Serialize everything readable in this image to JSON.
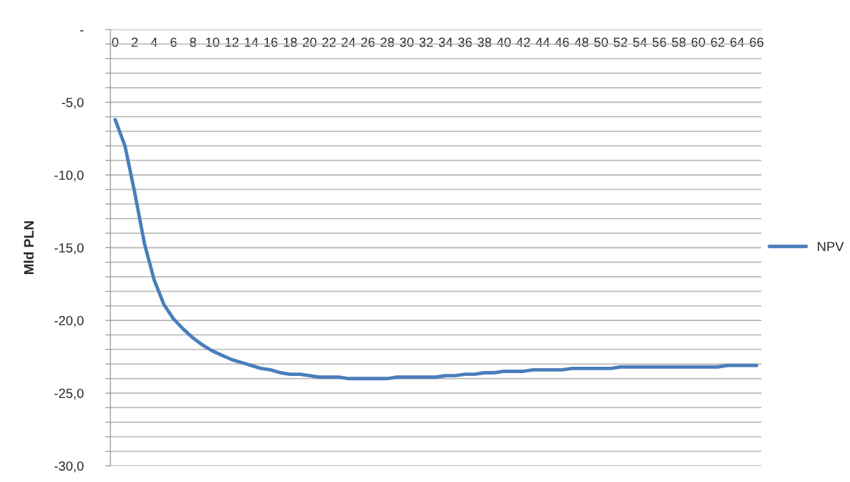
{
  "chart_data": {
    "type": "line",
    "ylabel": "Mld PLN",
    "categories": [
      "0",
      null,
      "2",
      null,
      "4",
      null,
      "6",
      null,
      "8",
      null,
      "10",
      null,
      "12",
      null,
      "14",
      null,
      "16",
      null,
      "18",
      null,
      "20",
      null,
      "22",
      null,
      "24",
      null,
      "26",
      null,
      "28",
      null,
      "30",
      null,
      "32",
      null,
      "34",
      null,
      "36",
      null,
      "38",
      null,
      "40",
      null,
      "42",
      null,
      "44",
      null,
      "46",
      null,
      "48",
      null,
      "50",
      null,
      "52",
      null,
      "54",
      null,
      "56",
      null,
      "58",
      null,
      "60",
      null,
      "62",
      null,
      "64",
      null,
      "66"
    ],
    "series": [
      {
        "name": "NPV",
        "color": "#4a7ebb",
        "values": [
          -6.2,
          -8.0,
          -11.2,
          -14.7,
          -17.2,
          -18.9,
          -19.9,
          -20.6,
          -21.2,
          -21.7,
          -22.1,
          -22.4,
          -22.7,
          -22.9,
          -23.1,
          -23.3,
          -23.4,
          -23.6,
          -23.7,
          -23.7,
          -23.8,
          -23.9,
          -23.9,
          -23.9,
          -24.0,
          -24.0,
          -24.0,
          -24.0,
          -24.0,
          -23.9,
          -23.9,
          -23.9,
          -23.9,
          -23.9,
          -23.8,
          -23.8,
          -23.7,
          -23.7,
          -23.6,
          -23.6,
          -23.5,
          -23.5,
          -23.5,
          -23.4,
          -23.4,
          -23.4,
          -23.4,
          -23.3,
          -23.3,
          -23.3,
          -23.3,
          -23.3,
          -23.2,
          -23.2,
          -23.2,
          -23.2,
          -23.2,
          -23.2,
          -23.2,
          -23.2,
          -23.2,
          -23.2,
          -23.2,
          -23.1,
          -23.1,
          -23.1,
          -23.1
        ]
      }
    ],
    "ylim": [
      -30,
      0
    ],
    "yticks": [
      {
        "value": 0,
        "label": "-"
      },
      {
        "value": -1,
        "label": null
      },
      {
        "value": -2,
        "label": null
      },
      {
        "value": -3,
        "label": null
      },
      {
        "value": -4,
        "label": null
      },
      {
        "value": -5,
        "label": "-5,0"
      },
      {
        "value": -6,
        "label": null
      },
      {
        "value": -7,
        "label": null
      },
      {
        "value": -8,
        "label": null
      },
      {
        "value": -9,
        "label": null
      },
      {
        "value": -10,
        "label": "-10,0"
      },
      {
        "value": -11,
        "label": null
      },
      {
        "value": -12,
        "label": null
      },
      {
        "value": -13,
        "label": null
      },
      {
        "value": -14,
        "label": null
      },
      {
        "value": -15,
        "label": "-15,0"
      },
      {
        "value": -16,
        "label": null
      },
      {
        "value": -17,
        "label": null
      },
      {
        "value": -18,
        "label": null
      },
      {
        "value": -19,
        "label": null
      },
      {
        "value": -20,
        "label": "-20,0"
      },
      {
        "value": -21,
        "label": null
      },
      {
        "value": -22,
        "label": null
      },
      {
        "value": -23,
        "label": null
      },
      {
        "value": -24,
        "label": null
      },
      {
        "value": -25,
        "label": "-25,0"
      },
      {
        "value": -26,
        "label": null
      },
      {
        "value": -27,
        "label": null
      },
      {
        "value": -28,
        "label": null
      },
      {
        "value": -29,
        "label": null
      },
      {
        "value": -30,
        "label": "-30,0"
      }
    ],
    "grid": "y",
    "legend": "right",
    "marker": "none",
    "line_style": "solid"
  }
}
